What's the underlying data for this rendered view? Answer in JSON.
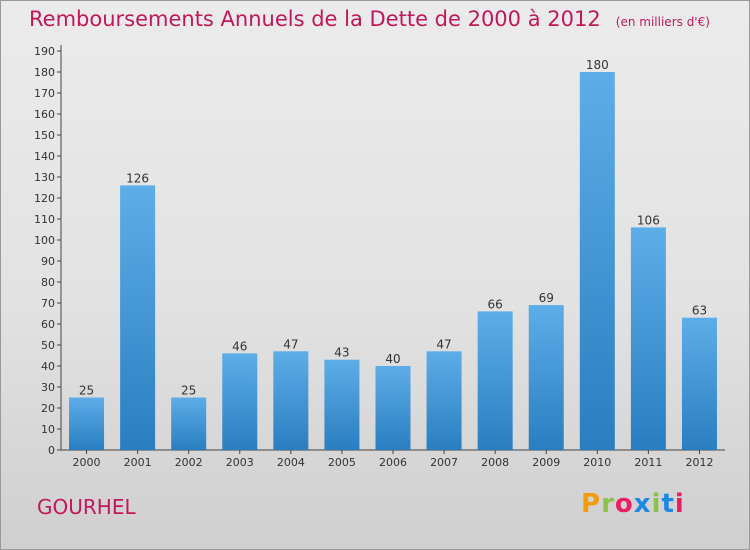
{
  "header": {
    "title": "Remboursements Annuels de la Dette de 2000 à 2012",
    "unit": "(en milliers d'€)"
  },
  "footer": {
    "commune": "GOURHEL",
    "brand": "Proxiti"
  },
  "colors": {
    "title": "#c2185b",
    "bar_light": "#5dade8",
    "bar_dark": "#2a7ec0",
    "brand_letters": [
      "#f39c12",
      "#8bc34a",
      "#e91e63",
      "#1e88e5",
      "#8bc34a",
      "#1e88e5",
      "#e91e63"
    ]
  },
  "chart_data": {
    "type": "bar",
    "categories": [
      "2000",
      "2001",
      "2002",
      "2003",
      "2004",
      "2005",
      "2006",
      "2007",
      "2008",
      "2009",
      "2010",
      "2011",
      "2012"
    ],
    "values": [
      25,
      126,
      25,
      46,
      47,
      43,
      40,
      47,
      66,
      69,
      180,
      106,
      63
    ],
    "title": "Remboursements Annuels de la Dette de 2000 à 2012",
    "ylabel": "",
    "xlabel": "",
    "ylim": [
      0,
      190
    ],
    "ytick_step": 10,
    "grid": false,
    "legend": "none"
  }
}
